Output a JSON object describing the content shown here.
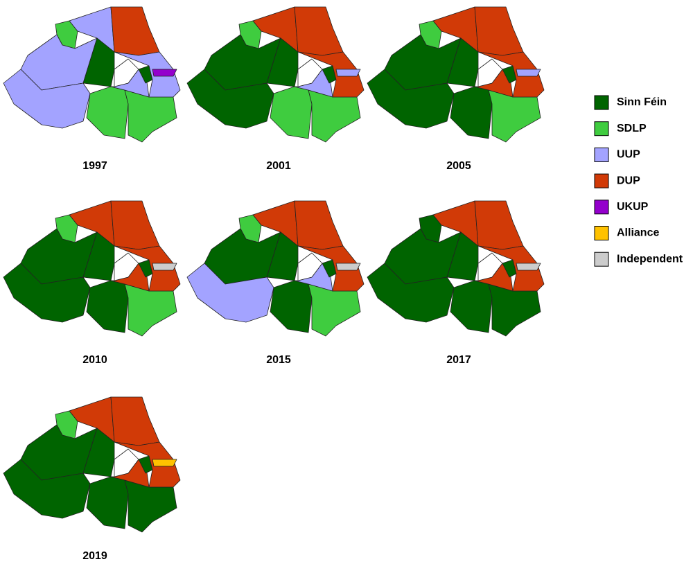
{
  "legend": [
    {
      "label": "Sinn Féin",
      "color": "#006400"
    },
    {
      "label": "SDLP",
      "color": "#3fcc3f"
    },
    {
      "label": "UUP",
      "color": "#a3a3ff"
    },
    {
      "label": "DUP",
      "color": "#d13a07"
    },
    {
      "label": "UKUP",
      "color": "#9400cc"
    },
    {
      "label": "Alliance",
      "color": "#ffc200"
    },
    {
      "label": "Independent",
      "color": "#cccccc"
    }
  ],
  "maps": [
    {
      "year": "1997",
      "winners": [
        "SDLP",
        "UUP",
        "DUP",
        "UUP",
        "Sinn Féin",
        "UUP",
        "SDLP",
        "SDLP",
        "UUP",
        "Sinn Féin",
        "UUP",
        "UKUP"
      ]
    },
    {
      "year": "2001",
      "winners": [
        "SDLP",
        "DUP",
        "DUP",
        "Sinn Féin",
        "Sinn Féin",
        "Sinn Féin",
        "SDLP",
        "SDLP",
        "UUP",
        "Sinn Féin",
        "DUP",
        "UUP"
      ]
    },
    {
      "year": "2005",
      "winners": [
        "SDLP",
        "DUP",
        "DUP",
        "Sinn Féin",
        "Sinn Féin",
        "Sinn Féin",
        "Sinn Féin",
        "SDLP",
        "DUP",
        "Sinn Féin",
        "DUP",
        "UUP"
      ]
    },
    {
      "year": "2010",
      "winners": [
        "SDLP",
        "DUP",
        "DUP",
        "Sinn Féin",
        "Sinn Féin",
        "Sinn Féin",
        "Sinn Féin",
        "SDLP",
        "DUP",
        "Sinn Féin",
        "DUP",
        "Independent"
      ]
    },
    {
      "year": "2015",
      "winners": [
        "SDLP",
        "DUP",
        "DUP",
        "Sinn Féin",
        "Sinn Féin",
        "UUP",
        "Sinn Féin",
        "SDLP",
        "UUP",
        "Sinn Féin",
        "DUP",
        "Independent"
      ]
    },
    {
      "year": "2017",
      "winners": [
        "Sinn Féin",
        "DUP",
        "DUP",
        "Sinn Féin",
        "Sinn Féin",
        "Sinn Féin",
        "Sinn Féin",
        "Sinn Féin",
        "DUP",
        "Sinn Féin",
        "DUP",
        "Independent"
      ]
    },
    {
      "year": "2019",
      "winners": [
        "SDLP",
        "DUP",
        "DUP",
        "Sinn Féin",
        "Sinn Féin",
        "Sinn Féin",
        "Sinn Féin",
        "Sinn Féin",
        "DUP",
        "Sinn Féin",
        "DUP",
        "Alliance"
      ]
    }
  ]
}
